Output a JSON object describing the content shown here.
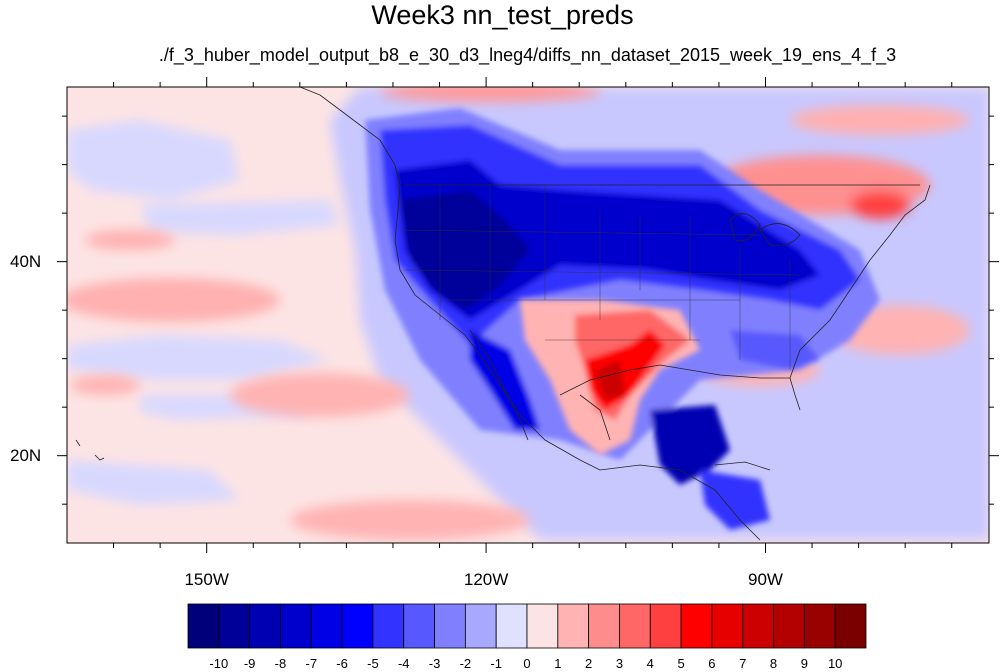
{
  "title": "Week3 nn_test_preds",
  "subtitle": "./f_3_huber_model_output_b8_e_30_d3_lneg4/diffs_nn_dataset_2015_week_19_ens_4_f_3",
  "map": {
    "projection": "cylindrical-equidistant",
    "lon_range": [
      -165,
      -66
    ],
    "lat_range": [
      11,
      58
    ],
    "background_color": "#fde4e4",
    "x_tick_labels": [
      {
        "lon": -150,
        "text": "150W"
      },
      {
        "lon": -120,
        "text": "120W"
      },
      {
        "lon": -90,
        "text": "90W"
      }
    ],
    "y_tick_labels": [
      {
        "lat": 40,
        "text": "40N"
      },
      {
        "lat": 20,
        "text": "20N"
      }
    ]
  },
  "colorbar": {
    "colors": [
      "#00007a",
      "#000099",
      "#0000b3",
      "#0000cc",
      "#0000e6",
      "#0000ff",
      "#3333ff",
      "#5858ff",
      "#8080ff",
      "#a8a8ff",
      "#e0e0ff",
      "#fde4e4",
      "#ffb3b3",
      "#ff8c8c",
      "#ff6666",
      "#ff4040",
      "#ff0000",
      "#e60000",
      "#cc0000",
      "#b30000",
      "#990000",
      "#7a0000"
    ],
    "labels": [
      "-10",
      "-9",
      "-8",
      "-7",
      "-6",
      "-5",
      "-4",
      "-3",
      "-2",
      "-1",
      "0",
      "1",
      "2",
      "3",
      "4",
      "5",
      "6",
      "7",
      "8",
      "9",
      "10"
    ]
  }
}
